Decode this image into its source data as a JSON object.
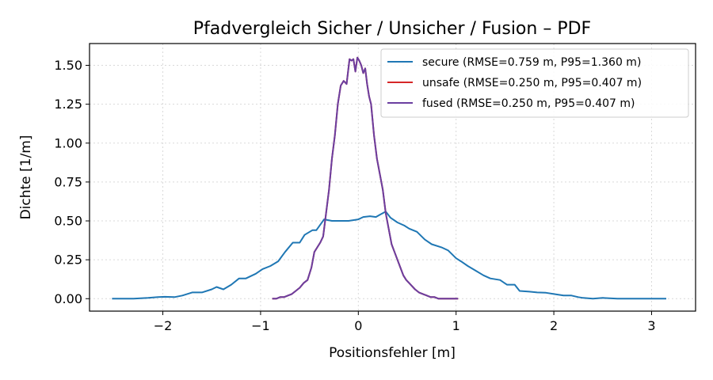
{
  "chart_data": {
    "type": "line",
    "title": "Pfadvergleich Sicher / Unsicher / Fusion – PDF",
    "xlabel": "Positionsfehler [m]",
    "ylabel": "Dichte [1/m]",
    "xlim": [
      -2.75,
      3.45
    ],
    "ylim": [
      -0.08,
      1.64
    ],
    "xticks": [
      -2,
      -1,
      0,
      1,
      2,
      3
    ],
    "xtick_labels": [
      "−2",
      "−1",
      "0",
      "1",
      "2",
      "3"
    ],
    "yticks": [
      0.0,
      0.25,
      0.5,
      0.75,
      1.0,
      1.25,
      1.5
    ],
    "ytick_labels": [
      "0.00",
      "0.25",
      "0.50",
      "0.75",
      "1.00",
      "1.25",
      "1.50"
    ],
    "grid": true,
    "legend_position": "top-right",
    "series": [
      {
        "name": "secure (RMSE=0.759 m, P95=1.360 m)",
        "color": "#1f77b4",
        "x": [
          -2.52,
          -2.3,
          -2.15,
          -2.05,
          -1.98,
          -1.88,
          -1.8,
          -1.7,
          -1.6,
          -1.5,
          -1.45,
          -1.38,
          -1.3,
          -1.22,
          -1.15,
          -1.05,
          -0.98,
          -0.9,
          -0.82,
          -0.75,
          -0.67,
          -0.6,
          -0.55,
          -0.47,
          -0.43,
          -0.35,
          -0.27,
          -0.2,
          -0.1,
          0.0,
          0.05,
          0.12,
          0.18,
          0.22,
          0.28,
          0.33,
          0.4,
          0.47,
          0.52,
          0.6,
          0.68,
          0.75,
          0.85,
          0.92,
          1.0,
          1.05,
          1.12,
          1.2,
          1.28,
          1.35,
          1.45,
          1.52,
          1.6,
          1.65,
          1.75,
          1.83,
          1.92,
          2.0,
          2.1,
          2.18,
          2.25,
          2.3,
          2.4,
          2.5,
          2.65,
          2.8,
          3.0,
          3.15
        ],
        "y": [
          0.0,
          0.0,
          0.005,
          0.01,
          0.012,
          0.01,
          0.02,
          0.04,
          0.04,
          0.06,
          0.075,
          0.06,
          0.09,
          0.13,
          0.13,
          0.16,
          0.19,
          0.21,
          0.24,
          0.3,
          0.36,
          0.36,
          0.41,
          0.44,
          0.44,
          0.51,
          0.5,
          0.5,
          0.5,
          0.51,
          0.525,
          0.53,
          0.525,
          0.54,
          0.56,
          0.52,
          0.49,
          0.47,
          0.45,
          0.43,
          0.38,
          0.35,
          0.33,
          0.31,
          0.26,
          0.24,
          0.21,
          0.18,
          0.15,
          0.13,
          0.12,
          0.09,
          0.09,
          0.05,
          0.045,
          0.04,
          0.038,
          0.03,
          0.02,
          0.02,
          0.01,
          0.005,
          0.0,
          0.005,
          0.0,
          0.0,
          0.0,
          0.0
        ]
      },
      {
        "name": "unsafe (RMSE=0.250 m, P95=0.407 m)",
        "color": "#d62728",
        "x": [
          -0.88,
          -0.84,
          -0.8,
          -0.76,
          -0.72,
          -0.68,
          -0.64,
          -0.6,
          -0.56,
          -0.52,
          -0.48,
          -0.45,
          -0.42,
          -0.39,
          -0.36,
          -0.33,
          -0.3,
          -0.27,
          -0.24,
          -0.21,
          -0.18,
          -0.15,
          -0.12,
          -0.09,
          -0.07,
          -0.05,
          -0.03,
          -0.01,
          0.01,
          0.03,
          0.05,
          0.07,
          0.09,
          0.11,
          0.13,
          0.16,
          0.19,
          0.22,
          0.25,
          0.28,
          0.31,
          0.34,
          0.37,
          0.4,
          0.43,
          0.46,
          0.49,
          0.52,
          0.55,
          0.58,
          0.62,
          0.66,
          0.7,
          0.74,
          0.78,
          0.82,
          0.86,
          0.9,
          0.94,
          0.98,
          1.02
        ],
        "y": [
          0.0,
          0.0,
          0.01,
          0.01,
          0.02,
          0.03,
          0.05,
          0.07,
          0.1,
          0.12,
          0.2,
          0.3,
          0.33,
          0.36,
          0.4,
          0.55,
          0.7,
          0.9,
          1.05,
          1.25,
          1.37,
          1.4,
          1.38,
          1.54,
          1.53,
          1.54,
          1.46,
          1.55,
          1.53,
          1.5,
          1.45,
          1.48,
          1.38,
          1.3,
          1.25,
          1.05,
          0.9,
          0.8,
          0.7,
          0.55,
          0.45,
          0.35,
          0.3,
          0.25,
          0.2,
          0.15,
          0.12,
          0.1,
          0.08,
          0.06,
          0.04,
          0.03,
          0.02,
          0.01,
          0.01,
          0.0,
          0.0,
          0.0,
          0.0,
          0.0,
          0.0
        ]
      },
      {
        "name": "fused (RMSE=0.250 m, P95=0.407 m)",
        "color": "#6b3fa0",
        "x": [
          -0.88,
          -0.84,
          -0.8,
          -0.76,
          -0.72,
          -0.68,
          -0.64,
          -0.6,
          -0.56,
          -0.52,
          -0.48,
          -0.45,
          -0.42,
          -0.39,
          -0.36,
          -0.33,
          -0.3,
          -0.27,
          -0.24,
          -0.21,
          -0.18,
          -0.15,
          -0.12,
          -0.09,
          -0.07,
          -0.05,
          -0.03,
          -0.01,
          0.01,
          0.03,
          0.05,
          0.07,
          0.09,
          0.11,
          0.13,
          0.16,
          0.19,
          0.22,
          0.25,
          0.28,
          0.31,
          0.34,
          0.37,
          0.4,
          0.43,
          0.46,
          0.49,
          0.52,
          0.55,
          0.58,
          0.62,
          0.66,
          0.7,
          0.74,
          0.78,
          0.82,
          0.86,
          0.9,
          0.94,
          0.98,
          1.02
        ],
        "y": [
          0.0,
          0.0,
          0.01,
          0.01,
          0.02,
          0.03,
          0.05,
          0.07,
          0.1,
          0.12,
          0.2,
          0.3,
          0.33,
          0.36,
          0.4,
          0.55,
          0.7,
          0.9,
          1.05,
          1.25,
          1.37,
          1.4,
          1.38,
          1.54,
          1.53,
          1.54,
          1.46,
          1.55,
          1.53,
          1.5,
          1.45,
          1.48,
          1.38,
          1.3,
          1.25,
          1.05,
          0.9,
          0.8,
          0.7,
          0.55,
          0.45,
          0.35,
          0.3,
          0.25,
          0.2,
          0.15,
          0.12,
          0.1,
          0.08,
          0.06,
          0.04,
          0.03,
          0.02,
          0.01,
          0.01,
          0.0,
          0.0,
          0.0,
          0.0,
          0.0,
          0.0
        ]
      }
    ]
  }
}
